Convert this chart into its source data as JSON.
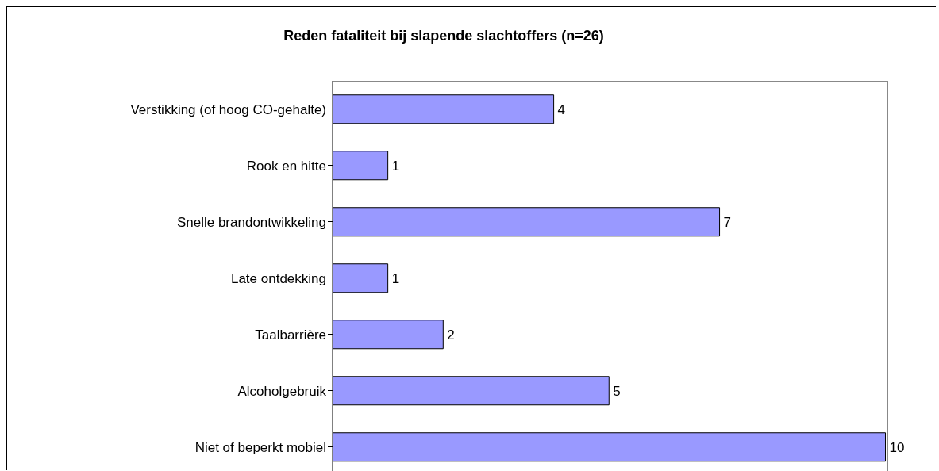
{
  "chart_data": {
    "type": "bar",
    "orientation": "horizontal",
    "title": "Reden fataliteit bij slapende slachtoffers (n=26)",
    "categories": [
      "Verstikking (of hoog CO-gehalte)",
      "Rook en hitte",
      "Snelle brandontwikkeling",
      "Late ontdekking",
      "Taalbarrière",
      "Alcoholgebruik",
      "Niet of beperkt mobiel"
    ],
    "values": [
      4,
      1,
      7,
      1,
      2,
      5,
      10
    ],
    "color": "#9999ff",
    "data_labels": true,
    "grid": false,
    "legend": false
  }
}
